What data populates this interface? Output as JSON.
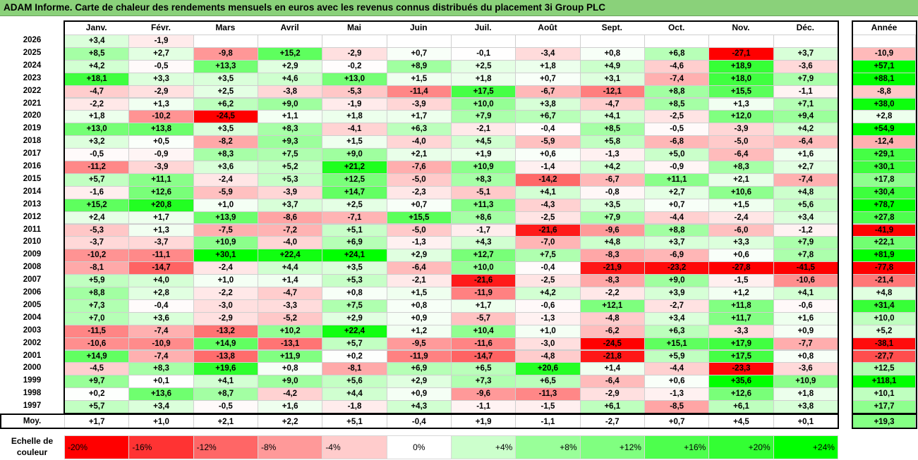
{
  "title": "ADAM Informe. Carte de chaleur des rendements mensuels en euros avec les revenus connus distribués du placement 3i Group PLC",
  "chart_data": {
    "type": "heatmap",
    "columns": [
      "Janv.",
      "Févr.",
      "Mars",
      "Avril",
      "Mai",
      "Juin",
      "Juil.",
      "Août",
      "Sept.",
      "Oct.",
      "Nov.",
      "Déc."
    ],
    "year_header": "Année",
    "rows": [
      {
        "year": "2026",
        "values": [
          "+3,4",
          "-1,9",
          "",
          "",
          "",
          "",
          "",
          "",
          "",
          "",
          "",
          ""
        ],
        "annual": ""
      },
      {
        "year": "2025",
        "values": [
          "+8,5",
          "+2,7",
          "-9,8",
          "+15,2",
          "-2,9",
          "+0,7",
          "-0,1",
          "-3,4",
          "+0,8",
          "+6,8",
          "-27,1",
          "+3,7"
        ],
        "annual": "-10,9"
      },
      {
        "year": "2024",
        "values": [
          "+4,2",
          "-0,5",
          "+13,3",
          "+2,9",
          "-0,2",
          "+8,9",
          "+2,5",
          "+1,8",
          "+4,9",
          "-4,6",
          "+18,9",
          "-3,6"
        ],
        "annual": "+57,1"
      },
      {
        "year": "2023",
        "values": [
          "+18,1",
          "+3,3",
          "+3,5",
          "+4,6",
          "+13,0",
          "+1,5",
          "+1,8",
          "+0,7",
          "+3,1",
          "-7,4",
          "+18,0",
          "+7,9"
        ],
        "annual": "+88,1"
      },
      {
        "year": "2022",
        "values": [
          "-4,7",
          "-2,9",
          "+2,5",
          "-3,8",
          "-5,3",
          "-11,4",
          "+17,5",
          "-6,7",
          "-12,1",
          "+8,8",
          "+15,5",
          "-1,1"
        ],
        "annual": "-8,8"
      },
      {
        "year": "2021",
        "values": [
          "-2,2",
          "+1,3",
          "+6,2",
          "+9,0",
          "-1,9",
          "-3,9",
          "+10,0",
          "+3,8",
          "-4,7",
          "+8,5",
          "+1,3",
          "+7,1"
        ],
        "annual": "+38,0"
      },
      {
        "year": "2020",
        "values": [
          "+1,8",
          "-10,2",
          "-24,5",
          "+1,1",
          "+1,8",
          "+1,7",
          "+7,9",
          "+6,7",
          "+4,1",
          "-2,5",
          "+12,0",
          "+9,4"
        ],
        "annual": "+2,8"
      },
      {
        "year": "2019",
        "values": [
          "+13,0",
          "+13,8",
          "+3,5",
          "+8,3",
          "-4,1",
          "+6,3",
          "-2,1",
          "-0,4",
          "+8,5",
          "-0,5",
          "-3,9",
          "+4,2"
        ],
        "annual": "+54,9"
      },
      {
        "year": "2018",
        "values": [
          "+3,2",
          "+0,5",
          "-8,2",
          "+9,3",
          "+1,5",
          "-4,0",
          "+4,5",
          "-5,9",
          "+5,8",
          "-6,8",
          "-5,0",
          "-6,4"
        ],
        "annual": "-12,4"
      },
      {
        "year": "2017",
        "values": [
          "-0,5",
          "-0,9",
          "+8,3",
          "+7,5",
          "+9,0",
          "+2,1",
          "+1,9",
          "+0,6",
          "-1,3",
          "+5,0",
          "-6,4",
          "+1,6"
        ],
        "annual": "+29,1"
      },
      {
        "year": "2016",
        "values": [
          "-11,2",
          "-3,9",
          "+3,6",
          "+5,2",
          "+21,2",
          "-7,6",
          "+10,9",
          "-1,4",
          "+4,2",
          "-0,9",
          "+8,3",
          "+2,7"
        ],
        "annual": "+30,1"
      },
      {
        "year": "2015",
        "values": [
          "+5,7",
          "+11,1",
          "-2,4",
          "+5,3",
          "+12,5",
          "-5,0",
          "+8,3",
          "-14,2",
          "-6,7",
          "+11,1",
          "+2,1",
          "-7,4"
        ],
        "annual": "+17,8"
      },
      {
        "year": "2014",
        "values": [
          "-1,6",
          "+12,6",
          "-5,9",
          "-3,9",
          "+14,7",
          "-2,3",
          "-5,1",
          "+4,1",
          "-0,8",
          "+2,7",
          "+10,6",
          "+4,8"
        ],
        "annual": "+30,4"
      },
      {
        "year": "2013",
        "values": [
          "+15,2",
          "+20,8",
          "+1,0",
          "+3,7",
          "+2,5",
          "+0,7",
          "+11,3",
          "-4,3",
          "+3,5",
          "+0,7",
          "+1,5",
          "+5,6"
        ],
        "annual": "+78,7"
      },
      {
        "year": "2012",
        "values": [
          "+2,4",
          "+1,7",
          "+13,9",
          "-8,6",
          "-7,1",
          "+15,5",
          "+8,6",
          "-2,5",
          "+7,9",
          "-4,4",
          "-2,4",
          "+3,4"
        ],
        "annual": "+27,8"
      },
      {
        "year": "2011",
        "values": [
          "-5,3",
          "+1,3",
          "-7,5",
          "-7,2",
          "+5,1",
          "-5,0",
          "-1,7",
          "-21,6",
          "-9,6",
          "+8,8",
          "-6,0",
          "-1,2"
        ],
        "annual": "-41,9"
      },
      {
        "year": "2010",
        "values": [
          "-3,7",
          "-3,7",
          "+10,9",
          "-4,0",
          "+6,9",
          "-1,3",
          "+4,3",
          "-7,0",
          "+4,8",
          "+3,7",
          "+3,3",
          "+7,9"
        ],
        "annual": "+22,1"
      },
      {
        "year": "2009",
        "values": [
          "-10,2",
          "-11,1",
          "+30,1",
          "+22,4",
          "+24,1",
          "+2,9",
          "+12,7",
          "+7,5",
          "-8,3",
          "-6,9",
          "+0,6",
          "+7,8"
        ],
        "annual": "+81,9"
      },
      {
        "year": "2008",
        "values": [
          "-8,1",
          "-14,7",
          "-2,4",
          "+4,4",
          "+3,5",
          "-6,4",
          "+10,0",
          "-0,4",
          "-21,9",
          "-23,2",
          "-27,8",
          "-41,5"
        ],
        "annual": "-77,8"
      },
      {
        "year": "2007",
        "values": [
          "+5,9",
          "+4,0",
          "+1,0",
          "+1,4",
          "+5,3",
          "-2,1",
          "-21,6",
          "-2,5",
          "-8,3",
          "+9,0",
          "-1,5",
          "-10,6"
        ],
        "annual": "-21,4"
      },
      {
        "year": "2006",
        "values": [
          "+8,8",
          "+2,8",
          "-2,2",
          "-4,7",
          "+0,8",
          "+1,5",
          "-11,9",
          "+4,2",
          "-2,2",
          "+3,9",
          "+1,2",
          "+4,1"
        ],
        "annual": "+4,8"
      },
      {
        "year": "2005",
        "values": [
          "+7,3",
          "-0,4",
          "-3,0",
          "-3,3",
          "+7,5",
          "+0,8",
          "+1,7",
          "-0,6",
          "+12,1",
          "-2,7",
          "+11,8",
          "-0,6"
        ],
        "annual": "+31,4"
      },
      {
        "year": "2004",
        "values": [
          "+7,0",
          "+3,6",
          "-2,9",
          "-5,2",
          "+2,9",
          "+0,9",
          "-5,7",
          "-1,3",
          "-4,8",
          "+3,4",
          "+11,7",
          "+1,6"
        ],
        "annual": "+10,0"
      },
      {
        "year": "2003",
        "values": [
          "-11,5",
          "-7,4",
          "-13,2",
          "+10,2",
          "+22,4",
          "+1,2",
          "+10,4",
          "+1,0",
          "-6,2",
          "+6,3",
          "-3,3",
          "+0,9"
        ],
        "annual": "+5,2"
      },
      {
        "year": "2002",
        "values": [
          "-10,6",
          "-10,9",
          "+14,9",
          "-13,1",
          "+5,7",
          "-9,5",
          "-11,6",
          "-3,0",
          "-24,5",
          "+15,1",
          "+17,9",
          "-7,7"
        ],
        "annual": "-38,1"
      },
      {
        "year": "2001",
        "values": [
          "+14,9",
          "-7,4",
          "-13,8",
          "+11,9",
          "+0,2",
          "-11,9",
          "-14,7",
          "-4,8",
          "-21,8",
          "+5,9",
          "+17,5",
          "+0,8"
        ],
        "annual": "-27,7"
      },
      {
        "year": "2000",
        "values": [
          "-4,5",
          "+8,3",
          "+19,6",
          "+0,8",
          "-8,1",
          "+6,9",
          "+6,5",
          "+20,6",
          "+1,4",
          "-4,4",
          "-23,3",
          "-3,6"
        ],
        "annual": "+12,5"
      },
      {
        "year": "1999",
        "values": [
          "+9,7",
          "+0,1",
          "+4,1",
          "+9,0",
          "+5,6",
          "+2,9",
          "+7,3",
          "+6,5",
          "-6,4",
          "+0,6",
          "+35,6",
          "+10,9"
        ],
        "annual": "+118,1"
      },
      {
        "year": "1998",
        "values": [
          "+0,2",
          "+13,6",
          "+8,7",
          "-4,2",
          "+4,4",
          "+0,9",
          "-9,6",
          "-11,3",
          "-2,9",
          "-1,3",
          "+12,6",
          "+1,8"
        ],
        "annual": "+10,1"
      },
      {
        "year": "1997",
        "values": [
          "+5,7",
          "+3,4",
          "-0,5",
          "+1,6",
          "-1,8",
          "+4,3",
          "-1,1",
          "-1,5",
          "+6,1",
          "-8,5",
          "+6,1",
          "+3,8"
        ],
        "annual": "+17,7"
      }
    ],
    "average": {
      "label": "Moy.",
      "values": [
        "+1,7",
        "+1,0",
        "+2,1",
        "+2,2",
        "+5,1",
        "-0,4",
        "+1,9",
        "-1,1",
        "-2,7",
        "+0,7",
        "+4,5",
        "+0,1"
      ],
      "annual": "+19,3"
    },
    "scale": {
      "label_line1": "Echelle de",
      "label_line2": "couleur",
      "steps": [
        {
          "label": "-20%",
          "color": "#ff0000"
        },
        {
          "label": "-16%",
          "color": "#ff3333"
        },
        {
          "label": "-12%",
          "color": "#ff6666"
        },
        {
          "label": "-8%",
          "color": "#ff9999"
        },
        {
          "label": "-4%",
          "color": "#ffcccc"
        },
        {
          "label": "0%",
          "color": "#ffffff"
        },
        {
          "label": "+4%",
          "color": "#ccffcc"
        },
        {
          "label": "+8%",
          "color": "#99ff99"
        },
        {
          "label": "+12%",
          "color": "#80ff80"
        },
        {
          "label": "+16%",
          "color": "#4dff4d"
        },
        {
          "label": "+20%",
          "color": "#33ff33"
        },
        {
          "label": "+24%",
          "color": "#00ff00"
        }
      ]
    }
  }
}
